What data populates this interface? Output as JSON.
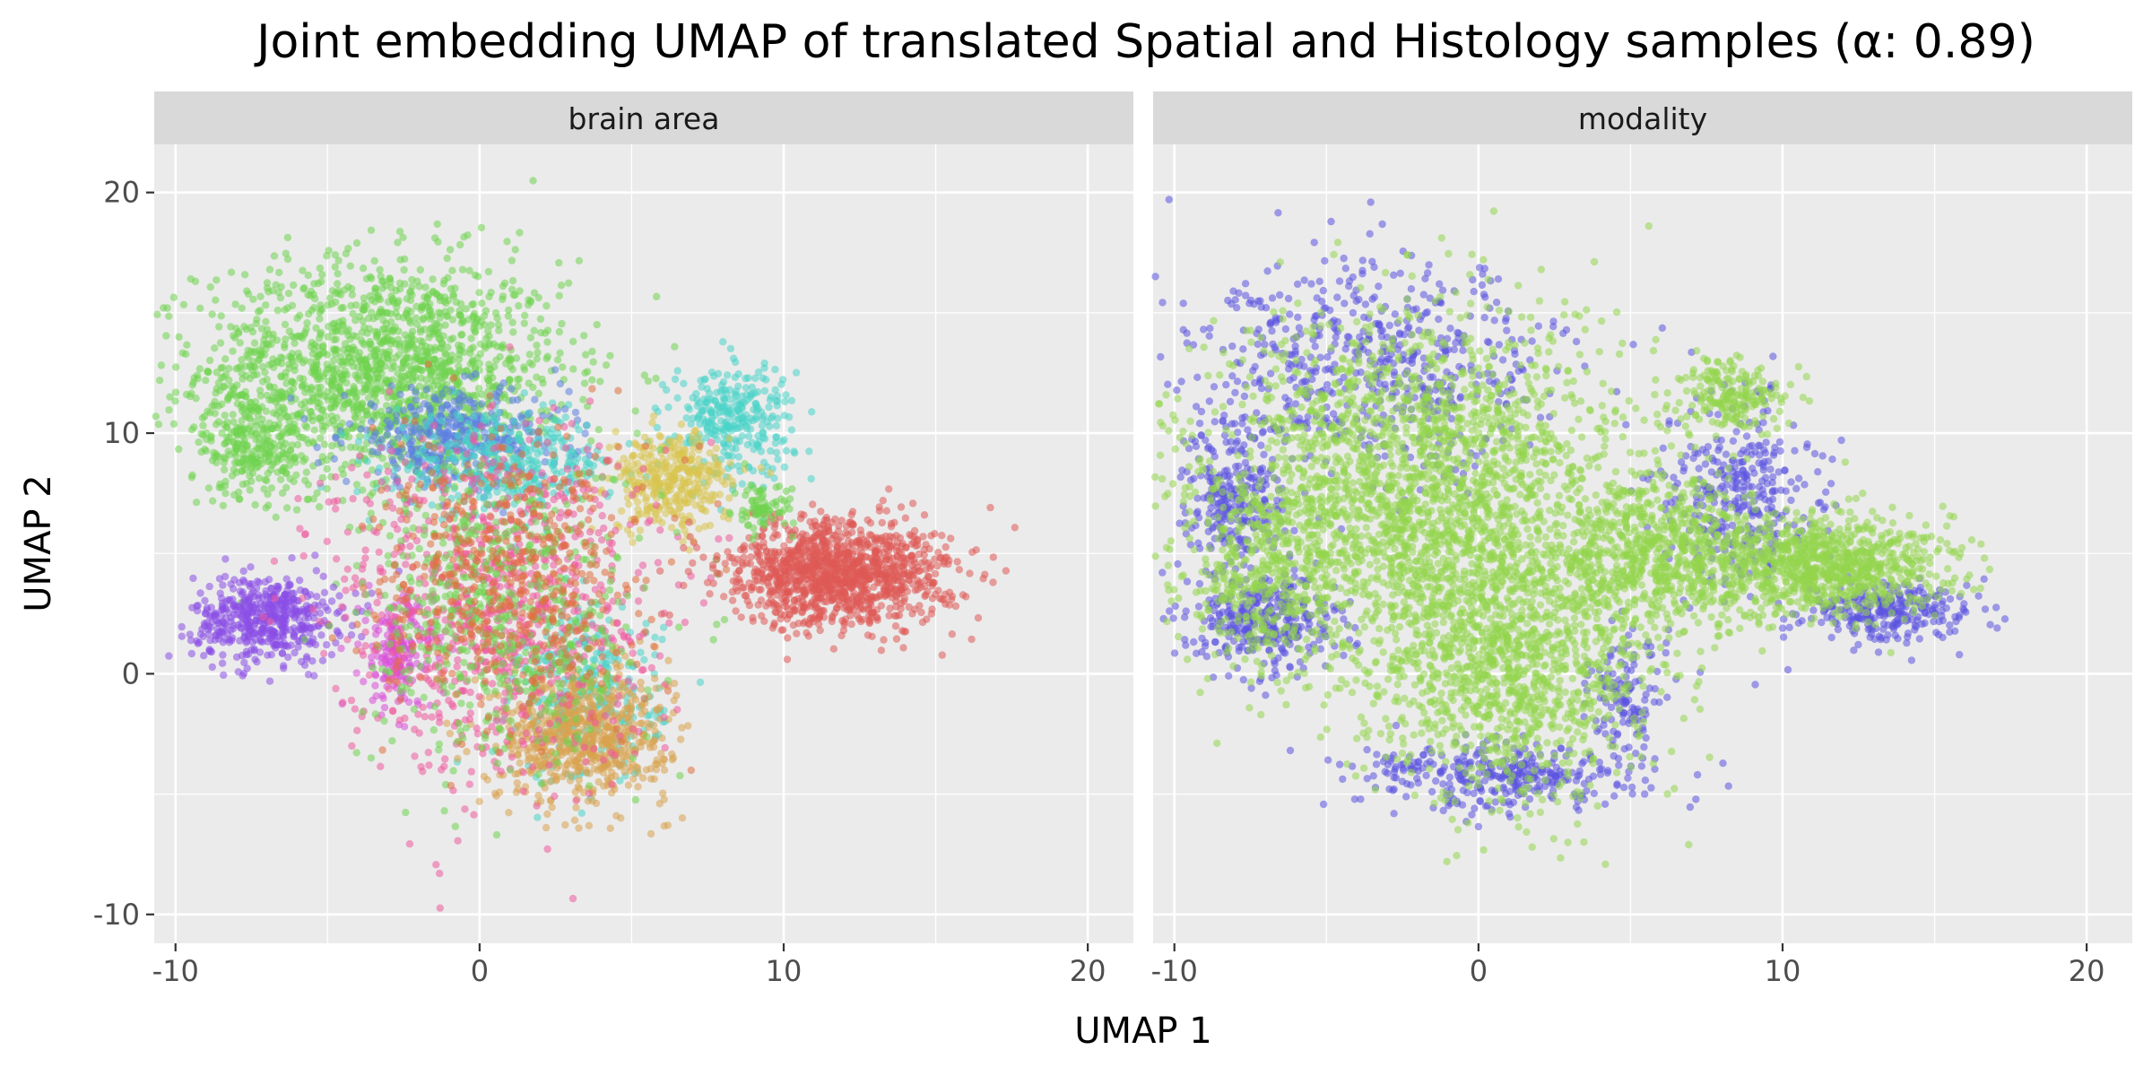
{
  "chart_data": {
    "type": "scatter",
    "title": "Joint embedding UMAP of translated Spatial and Histology samples (α: 0.89)",
    "xlabel": "UMAP 1",
    "ylabel": "UMAP 2",
    "xlim": [
      -10.7,
      21.5
    ],
    "ylim": [
      -11.2,
      22.0
    ],
    "x_ticks": [
      -10,
      0,
      10,
      20
    ],
    "x_tick_labels": [
      "-10",
      "0",
      "10",
      "20"
    ],
    "y_ticks": [
      -10,
      0,
      10,
      20
    ],
    "y_tick_labels": [
      "-10",
      "0",
      "10",
      "20"
    ],
    "grid": true,
    "legend": "none",
    "panels": [
      {
        "facet_label": "brain area",
        "clusters": [
          {
            "color": "#6fd44f",
            "cx": -3.2,
            "cy": 12.6,
            "sx": 3.0,
            "sy": 2.3,
            "n": 1600
          },
          {
            "color": "#6fd44f",
            "cx": -7.5,
            "cy": 9.6,
            "sx": 0.8,
            "sy": 1.1,
            "n": 250
          },
          {
            "color": "#8a4fe6",
            "cx": -7.0,
            "cy": 2.3,
            "sx": 1.2,
            "sy": 0.9,
            "n": 500
          },
          {
            "color": "#d94fd9",
            "cx": -2.7,
            "cy": 0.8,
            "sx": 0.6,
            "sy": 1.2,
            "n": 180
          },
          {
            "color": "#5b7fe0",
            "cx": -0.8,
            "cy": 9.8,
            "sx": 1.8,
            "sy": 1.0,
            "n": 400
          },
          {
            "color": "#49d4c8",
            "cx": 0.8,
            "cy": 8.7,
            "sx": 1.8,
            "sy": 1.0,
            "n": 350
          },
          {
            "color": "#49d4c8",
            "cx": 8.3,
            "cy": 10.6,
            "sx": 1.0,
            "sy": 1.2,
            "n": 300
          },
          {
            "color": "#49d4c8",
            "cx": 3.6,
            "cy": -1.0,
            "sx": 1.2,
            "sy": 1.8,
            "n": 300
          },
          {
            "color": "#d9c44f",
            "cx": 6.3,
            "cy": 8.0,
            "sx": 1.0,
            "sy": 1.0,
            "n": 350
          },
          {
            "color": "#d9a34f",
            "cx": 3.4,
            "cy": -2.5,
            "sx": 1.4,
            "sy": 1.4,
            "n": 700
          },
          {
            "color": "#ee5a9e",
            "cx": 0.5,
            "cy": 3.0,
            "sx": 2.6,
            "sy": 3.6,
            "n": 900
          },
          {
            "color": "#6fd44f",
            "cx": 0.8,
            "cy": 2.5,
            "sx": 2.2,
            "sy": 3.2,
            "n": 600
          },
          {
            "color": "#e06f3f",
            "cx": 1.0,
            "cy": 4.0,
            "sx": 2.2,
            "sy": 2.8,
            "n": 500
          },
          {
            "color": "#df5a55",
            "cx": 11.8,
            "cy": 4.2,
            "sx": 1.8,
            "sy": 1.1,
            "n": 1200
          },
          {
            "color": "#6fd44f",
            "cx": 9.3,
            "cy": 6.8,
            "sx": 0.5,
            "sy": 0.5,
            "n": 80
          }
        ]
      },
      {
        "facet_label": "modality",
        "clusters": [
          {
            "color": "#5b53e0",
            "cx": -3.5,
            "cy": 12.7,
            "sx": 3.1,
            "sy": 2.2,
            "n": 600
          },
          {
            "color": "#5b53e0",
            "cx": -8.0,
            "cy": 7.2,
            "sx": 0.8,
            "sy": 1.5,
            "n": 250
          },
          {
            "color": "#5b53e0",
            "cx": -7.0,
            "cy": 2.2,
            "sx": 1.2,
            "sy": 1.0,
            "n": 350
          },
          {
            "color": "#5b53e0",
            "cx": 1.0,
            "cy": -4.2,
            "sx": 2.4,
            "sy": 0.7,
            "n": 350
          },
          {
            "color": "#5b53e0",
            "cx": 8.6,
            "cy": 7.5,
            "sx": 1.2,
            "sy": 2.0,
            "n": 350
          },
          {
            "color": "#5b53e0",
            "cx": 13.6,
            "cy": 2.6,
            "sx": 1.4,
            "sy": 0.6,
            "n": 280
          },
          {
            "color": "#5b53e0",
            "cx": 4.8,
            "cy": -1.0,
            "sx": 0.6,
            "sy": 1.2,
            "n": 120
          },
          {
            "color": "#93d64d",
            "cx": -2.0,
            "cy": 7.5,
            "sx": 3.6,
            "sy": 3.6,
            "n": 2300
          },
          {
            "color": "#93d64d",
            "cx": -7.0,
            "cy": 4.0,
            "sx": 1.3,
            "sy": 2.0,
            "n": 350
          },
          {
            "color": "#93d64d",
            "cx": 1.0,
            "cy": 0.5,
            "sx": 2.4,
            "sy": 2.8,
            "n": 1200
          },
          {
            "color": "#93d64d",
            "cx": 8.3,
            "cy": 11.6,
            "sx": 0.9,
            "sy": 0.8,
            "n": 200
          },
          {
            "color": "#93d64d",
            "cx": 11.5,
            "cy": 4.5,
            "sx": 2.0,
            "sy": 1.0,
            "n": 900
          },
          {
            "color": "#93d64d",
            "cx": 6.0,
            "cy": 5.0,
            "sx": 1.8,
            "sy": 1.6,
            "n": 700
          }
        ]
      }
    ]
  }
}
